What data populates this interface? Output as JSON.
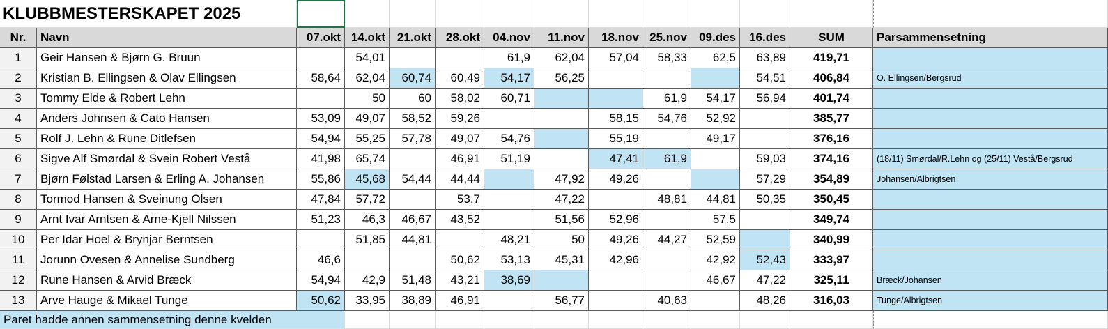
{
  "title": "KLUBBMESTERSKAPET 2025",
  "table": {
    "columns": [
      "Nr.",
      "Navn",
      "07.okt",
      "14.okt",
      "21.okt",
      "28.okt",
      "04.nov",
      "11.nov",
      "18.nov",
      "25.nov",
      "09.des",
      "16.des",
      "SUM",
      "Parsammensetning"
    ],
    "rows": [
      [
        "1",
        "Geir Hansen & Bjørn G. Bruun",
        null,
        "54,01",
        null,
        null,
        "61,9",
        "62,04",
        "57,04",
        "58,33",
        "62,5",
        "63,89",
        "419,71",
        null
      ],
      [
        "2",
        "Kristian B. Ellingsen & Olav Ellingsen",
        "58,64",
        "62,04",
        "60,74",
        "60,49",
        "54,17",
        "56,25",
        null,
        null,
        null,
        "54,51",
        "406,84",
        "O. Ellingsen/Bergsrud"
      ],
      [
        "3",
        "Tommy Elde & Robert Lehn",
        null,
        "50",
        "60",
        "58,02",
        "60,71",
        null,
        null,
        "61,9",
        "54,17",
        "56,94",
        "401,74",
        null
      ],
      [
        "4",
        "Anders Johnsen & Cato Hansen",
        "53,09",
        "49,07",
        "58,52",
        "59,26",
        null,
        null,
        "58,15",
        "54,76",
        "52,92",
        null,
        "385,77",
        null
      ],
      [
        "5",
        "Rolf J. Lehn & Rune Ditlefsen",
        "54,94",
        "55,25",
        "57,78",
        "49,07",
        "54,76",
        null,
        "55,19",
        null,
        "49,17",
        null,
        "376,16",
        null
      ],
      [
        "6",
        "Sigve Alf Smørdal & Svein Robert Vestå",
        "41,98",
        "65,74",
        null,
        "46,91",
        "51,19",
        null,
        "47,41",
        "61,9",
        null,
        "59,03",
        "374,16",
        "(18/11) Smørdal/R.Lehn og (25/11) Vestå/Bergsrud"
      ],
      [
        "7",
        "Bjørn Følstad Larsen & Erling A. Johansen",
        "55,86",
        "45,68",
        "54,44",
        "44,44",
        null,
        "47,92",
        "49,26",
        null,
        null,
        "57,29",
        "354,89",
        "Johansen/Albrigtsen"
      ],
      [
        "8",
        "Tormod Hansen & Sveinung Olsen",
        "47,84",
        "57,72",
        null,
        "53,7",
        null,
        "47,22",
        null,
        "48,81",
        "44,81",
        "50,35",
        "350,45",
        null
      ],
      [
        "9",
        "Arnt Ivar Arntsen & Arne-Kjell Nilssen",
        "51,23",
        "46,3",
        "46,67",
        "43,52",
        null,
        "51,56",
        "52,96",
        null,
        "57,5",
        null,
        "349,74",
        null
      ],
      [
        "10",
        "Per Idar Hoel & Brynjar Berntsen",
        null,
        "51,85",
        "44,81",
        null,
        "48,21",
        "50",
        "49,26",
        "44,27",
        "52,59",
        null,
        "340,99",
        null
      ],
      [
        "11",
        "Jorunn Ovesen & Annelise Sundberg",
        "46,6",
        null,
        null,
        "50,62",
        "53,13",
        "45,31",
        "42,96",
        null,
        "42,92",
        "52,43",
        "333,97",
        null
      ],
      [
        "12",
        "Rune Hansen & Arvid Bræck",
        "54,94",
        "42,9",
        "51,48",
        "43,21",
        "38,69",
        null,
        null,
        null,
        "46,67",
        "47,22",
        "325,11",
        "Bræck/Johansen"
      ],
      [
        "13",
        "Arve Hauge & Mikael Tunge",
        "50,62",
        "33,95",
        "38,89",
        "46,91",
        null,
        "56,77",
        null,
        "40,63",
        null,
        "48,26",
        "316,03",
        "Tunge/Albrigtsen"
      ]
    ],
    "highlight": [
      [],
      [
        4,
        6,
        10
      ],
      [
        7,
        8
      ],
      [],
      [
        7
      ],
      [
        8,
        9
      ],
      [
        3,
        6,
        10
      ],
      [],
      [],
      [
        11
      ],
      [
        11
      ],
      [
        6,
        7
      ],
      [
        2
      ]
    ],
    "highlight_color": "#c0e4f4"
  },
  "footer": "Paret hadde annen sammensetning denne kvelden"
}
